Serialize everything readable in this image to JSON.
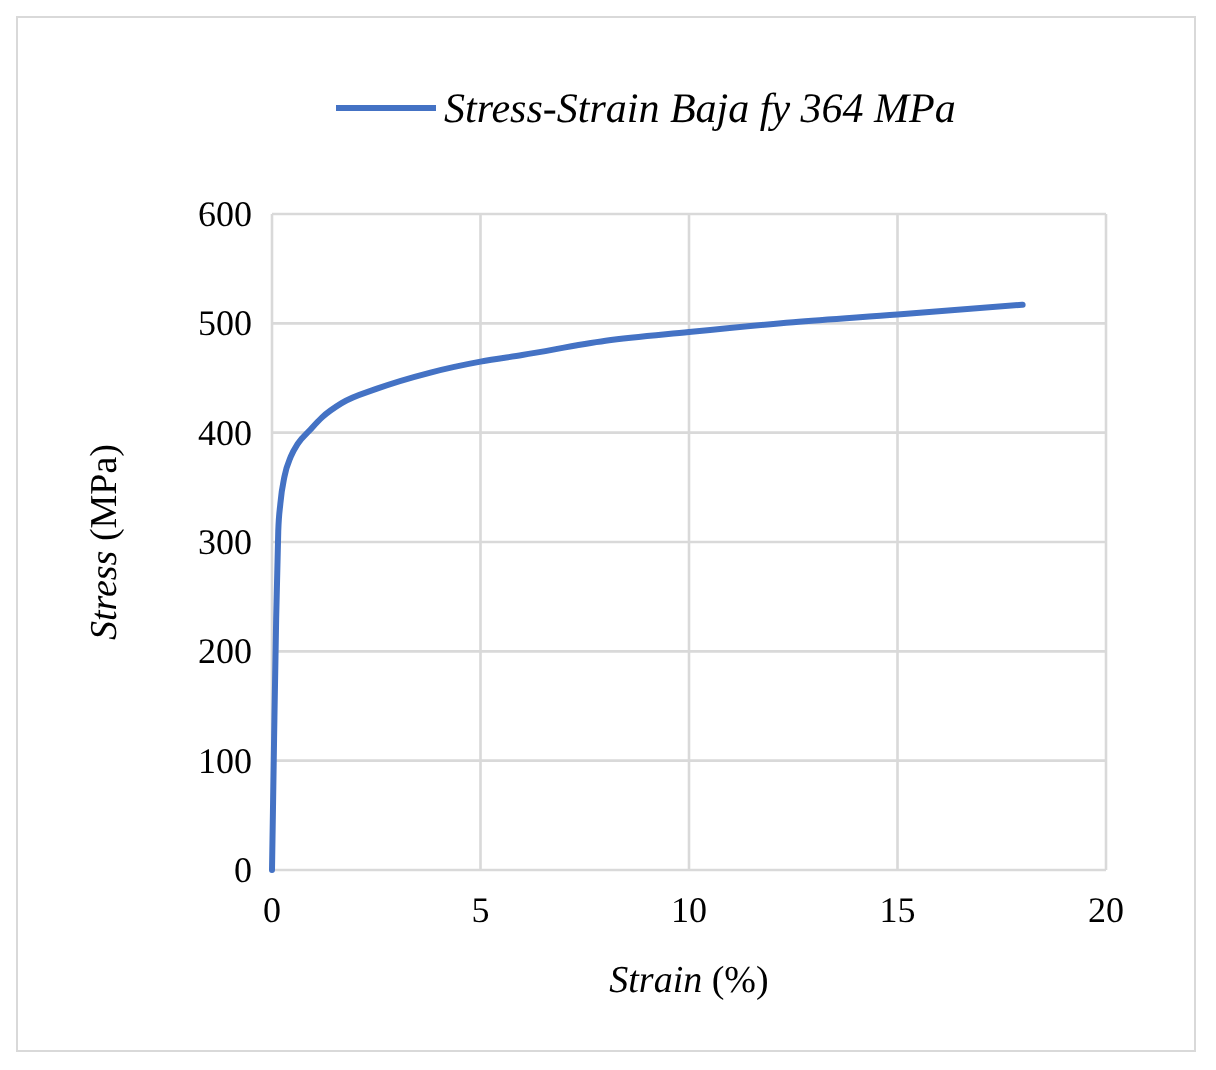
{
  "chart_data": {
    "type": "line",
    "xlabel": "Strain (%)",
    "ylabel": "Stress (MPa)",
    "x": [
      0,
      0.05,
      0.1,
      0.15,
      0.2,
      0.3,
      0.45,
      0.62,
      0.9,
      1.2,
      1.67,
      2.5,
      3.8,
      5,
      6,
      8,
      10,
      12.5,
      15,
      18
    ],
    "series": [
      {
        "name": "Stress-Strain Baja fy 364 MPa",
        "color": "#4472c4",
        "values": [
          0,
          120,
          230,
          310,
          335,
          360,
          378,
          390,
          402,
          414,
          427,
          440,
          455,
          465,
          471,
          484,
          492,
          501,
          508,
          517
        ]
      }
    ],
    "xlim": [
      0,
      20
    ],
    "xticks": [
      0,
      5,
      10,
      15,
      20
    ],
    "ylim": [
      0,
      600
    ],
    "yticks": [
      0,
      100,
      200,
      300,
      400,
      500,
      600
    ],
    "grid": true,
    "legend": "top",
    "marker": "none",
    "line_style": "solid"
  }
}
